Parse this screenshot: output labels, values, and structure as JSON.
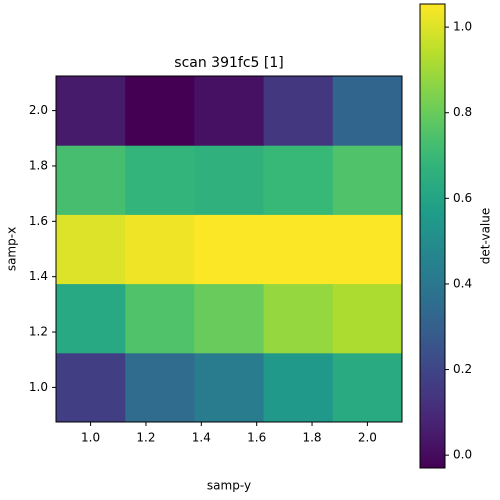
{
  "chart_data": {
    "type": "heatmap",
    "title": "scan 391fc5 [1]",
    "xlabel": "samp-y",
    "ylabel": "samp-x",
    "colorbar_label": "det-value",
    "colormap": "viridis",
    "x": [
      1.0,
      1.25,
      1.5,
      1.75,
      2.0
    ],
    "y": [
      1.0,
      1.25,
      1.5,
      1.75,
      2.0
    ],
    "values": [
      [
        0.17,
        0.35,
        0.42,
        0.55,
        0.63
      ],
      [
        0.62,
        0.75,
        0.8,
        0.88,
        0.92
      ],
      [
        1.0,
        1.03,
        1.05,
        1.05,
        1.05
      ],
      [
        0.73,
        0.68,
        0.66,
        0.7,
        0.75
      ],
      [
        0.05,
        -0.03,
        0.02,
        0.15,
        0.32
      ]
    ],
    "xlim": [
      0.875,
      2.125
    ],
    "ylim": [
      0.875,
      2.125
    ],
    "clim": [
      -0.03,
      1.054
    ],
    "xticks": [
      {
        "value": 1,
        "label": "1.0"
      },
      {
        "value": 1.2,
        "label": "1.2"
      },
      {
        "value": 1.4,
        "label": "1.4"
      },
      {
        "value": 1.6,
        "label": "1.6"
      },
      {
        "value": 1.8,
        "label": "1.8"
      },
      {
        "value": 2,
        "label": "2.0"
      }
    ],
    "yticks": [
      {
        "value": 1,
        "label": "1.0"
      },
      {
        "value": 1.2,
        "label": "1.2"
      },
      {
        "value": 1.4,
        "label": "1.4"
      },
      {
        "value": 1.6,
        "label": "1.6"
      },
      {
        "value": 1.8,
        "label": "1.8"
      },
      {
        "value": 2,
        "label": "2.0"
      }
    ],
    "cticks": [
      {
        "value": 0,
        "label": "0.0"
      },
      {
        "value": 0.2,
        "label": "0.2"
      },
      {
        "value": 0.4,
        "label": "0.4"
      },
      {
        "value": 0.6,
        "label": "0.6"
      },
      {
        "value": 0.8,
        "label": "0.8"
      },
      {
        "value": 1,
        "label": "1.0"
      }
    ]
  }
}
